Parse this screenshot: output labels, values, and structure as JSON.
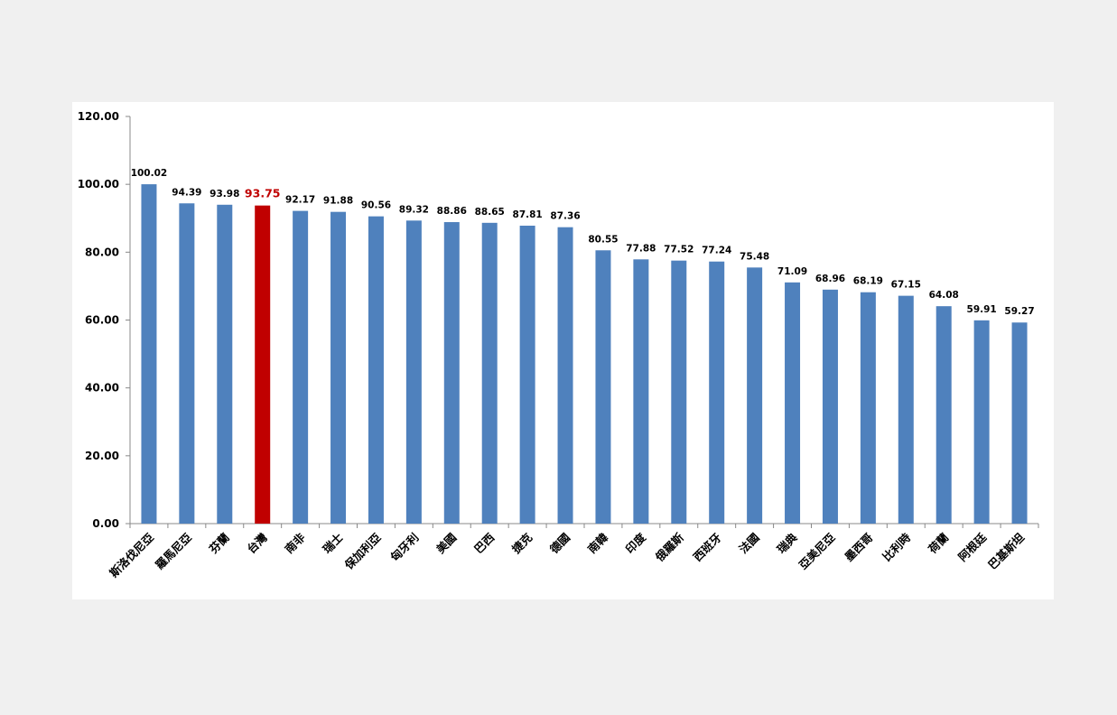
{
  "chart_data": {
    "type": "bar",
    "title": "",
    "xlabel": "",
    "ylabel": "",
    "ylim": [
      0,
      120
    ],
    "yticks": [
      "0.00",
      "20.00",
      "40.00",
      "60.00",
      "80.00",
      "100.00",
      "120.00"
    ],
    "grid": false,
    "legend": "none",
    "bar_color": "#4f81bd",
    "highlight_color": "#c00000",
    "highlight_category": "台灣",
    "categories": [
      "斯洛伐尼亞",
      "羅馬尼亞",
      "芬蘭",
      "台灣",
      "南非",
      "瑞士",
      "保加利亞",
      "匈牙利",
      "美國",
      "巴西",
      "捷克",
      "德國",
      "南韓",
      "印度",
      "俄羅斯",
      "西班牙",
      "法國",
      "瑞典",
      "亞美尼亞",
      "墨西哥",
      "比利時",
      "荷蘭",
      "阿根廷",
      "巴基斯坦"
    ],
    "values": [
      100.02,
      94.39,
      93.98,
      93.75,
      92.17,
      91.88,
      90.56,
      89.32,
      88.86,
      88.65,
      87.81,
      87.36,
      80.55,
      77.88,
      77.52,
      77.24,
      75.48,
      71.09,
      68.96,
      68.19,
      67.15,
      64.08,
      59.91,
      59.27
    ],
    "labels": [
      "100.02",
      "94.39",
      "93.98",
      "93.75",
      "92.17",
      "91.88",
      "90.56",
      "89.32",
      "88.86",
      "88.65",
      "87.81",
      "87.36",
      "80.55",
      "77.88",
      "77.52",
      "77.24",
      "75.48",
      "71.09",
      "68.96",
      "68.19",
      "67.15",
      "64.08",
      "59.91",
      "59.27"
    ]
  }
}
